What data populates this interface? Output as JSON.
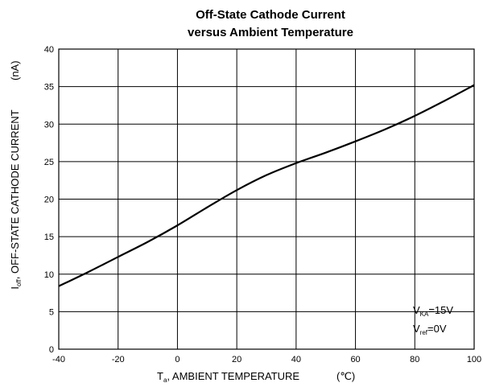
{
  "chart_data": {
    "type": "line",
    "title": [
      "Off-State Cathode Current",
      "versus Ambient Temperature"
    ],
    "xlabel": {
      "main": "T",
      "sub": "a",
      "rest": ", AMBIENT TEMPERATURE",
      "unit": "(℃)"
    },
    "ylabel": {
      "main": "I",
      "sub": "off",
      "rest": ", OFF-STATE CATHODE CURRENT",
      "unit": "(nA)"
    },
    "xlim": [
      -40,
      100
    ],
    "ylim": [
      0,
      40
    ],
    "xticks": [
      -40,
      -20,
      0,
      20,
      40,
      60,
      80,
      100
    ],
    "yticks": [
      0,
      5,
      10,
      15,
      20,
      25,
      30,
      35,
      40
    ],
    "grid": true,
    "series": [
      {
        "x": [
          -40,
          -30,
          -20,
          -10,
          0,
          10,
          20,
          30,
          40,
          50,
          60,
          70,
          80,
          90,
          100
        ],
        "y": [
          8.4,
          10.3,
          12.3,
          14.3,
          16.5,
          18.9,
          21.2,
          23.2,
          24.8,
          26.2,
          27.7,
          29.3,
          31.1,
          33.1,
          35.2
        ]
      }
    ],
    "annotations": [
      {
        "main": "V",
        "sub": "KA",
        "rest": "=15V"
      },
      {
        "main": "V",
        "sub": "ref",
        "rest": "=0V"
      }
    ]
  }
}
